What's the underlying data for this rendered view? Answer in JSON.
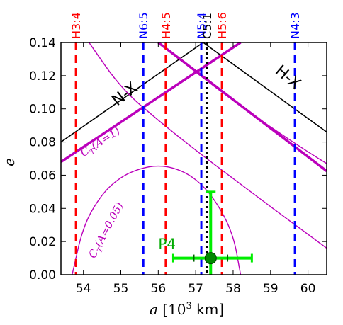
{
  "chart_data": {
    "type": "line",
    "xlabel": "a [10³ km]",
    "xlabel_italic": "a",
    "xlabel_rest": " [10",
    "xlabel_sup": "3",
    "xlabel_unit": " km]",
    "ylabel": "e",
    "xlim": [
      53.4,
      60.5
    ],
    "ylim": [
      0.0,
      0.14
    ],
    "x_ticks": [
      "54",
      "55",
      "56",
      "57",
      "58",
      "59",
      "60"
    ],
    "y_ticks": [
      "0.00",
      "0.02",
      "0.04",
      "0.06",
      "0.08",
      "0.10",
      "0.12",
      "0.14"
    ],
    "resonances": [
      {
        "label": "H3:4",
        "a": 53.8,
        "color": "#ff0000"
      },
      {
        "label": "N6:5",
        "a": 55.6,
        "color": "#0000ff"
      },
      {
        "label": "H4:5",
        "a": 56.2,
        "color": "#ff0000"
      },
      {
        "label": "N5:4",
        "a": 57.15,
        "color": "#0000ff"
      },
      {
        "label": "C5:1",
        "a": 57.3,
        "color": "#000000"
      },
      {
        "label": "H5:6",
        "a": 57.7,
        "color": "#ff0000"
      },
      {
        "label": "N4:3",
        "a": 59.65,
        "color": "#0000ff"
      }
    ],
    "crossing_lines": [
      {
        "name": "N-X",
        "color": "#000000",
        "points": [
          [
            53.4,
            0.08
          ],
          [
            57.2,
            0.14
          ]
        ]
      },
      {
        "name": "H-X",
        "color": "#000000",
        "points": [
          [
            57.2,
            0.14
          ],
          [
            60.5,
            0.086
          ]
        ]
      },
      {
        "name": "",
        "color": "#bb00bb",
        "points": [
          [
            53.4,
            0.068
          ],
          [
            58.2,
            0.14
          ]
        ]
      },
      {
        "name": "",
        "color": "#bb00bb",
        "points": [
          [
            56.0,
            0.14
          ],
          [
            60.5,
            0.0625
          ]
        ]
      }
    ],
    "contours": [
      {
        "label": "C",
        "sub": "T",
        "rest": "(A=1)",
        "color": "#bb00bb",
        "points": [
          [
            54.15,
            0.14
          ],
          [
            55.0,
            0.1125
          ],
          [
            56.0,
            0.093
          ],
          [
            57.0,
            0.075
          ],
          [
            58.0,
            0.058
          ],
          [
            59.0,
            0.041
          ],
          [
            60.5,
            0.016
          ]
        ]
      },
      {
        "label": "C",
        "sub": "T",
        "rest": "(A=0.05)",
        "color": "#bb00bb",
        "points": [
          [
            53.7,
            0.0
          ],
          [
            54.0,
            0.03
          ],
          [
            54.5,
            0.049
          ],
          [
            55.0,
            0.059
          ],
          [
            55.5,
            0.064
          ],
          [
            56.0,
            0.066
          ],
          [
            56.5,
            0.064
          ],
          [
            57.0,
            0.058
          ],
          [
            57.5,
            0.046
          ],
          [
            58.0,
            0.025
          ],
          [
            58.2,
            0.0
          ]
        ]
      },
      {
        "label": "",
        "color": "#bb00bb",
        "points": [
          [
            56.0,
            0.14
          ],
          [
            57.0,
            0.122
          ],
          [
            58.0,
            0.105
          ],
          [
            59.0,
            0.089
          ],
          [
            60.0,
            0.074
          ],
          [
            60.5,
            0.067
          ]
        ]
      }
    ],
    "planet": {
      "name": "P4",
      "a": 57.4,
      "e": 0.01,
      "a_err": [
        56.4,
        58.5
      ],
      "e_err": [
        0.0,
        0.05
      ],
      "color": "#00ee00"
    },
    "region_labels": [
      "N-X",
      "H-X"
    ]
  }
}
